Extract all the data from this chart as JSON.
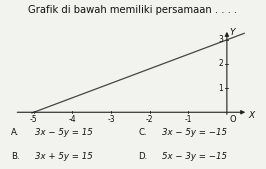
{
  "title": "Grafik di bawah memiliki persamaan . . . .",
  "x_intercept": -5,
  "y_intercept": 3,
  "x_min": -5.6,
  "x_max": 0.6,
  "y_min": -0.25,
  "y_max": 3.6,
  "x_ticks": [
    -5,
    -4,
    -3,
    -2,
    -1
  ],
  "y_ticks": [
    1,
    2,
    3
  ],
  "line_color": "#444444",
  "axis_color": "#222222",
  "bg_color": "#f2f2ee",
  "text_color": "#111111",
  "font_size_title": 7.2,
  "font_size_tick": 5.5,
  "font_size_axlabel": 6.5,
  "font_size_origin": 6.0,
  "font_size_choices": 6.2,
  "choices_col1": [
    [
      "A.",
      "3x − 5y = 15"
    ],
    [
      "B.",
      "3x + 5y = 15"
    ]
  ],
  "choices_col2": [
    [
      "C.",
      "3x − 5y = −15"
    ],
    [
      "D.",
      "5x − 3y = −15"
    ]
  ]
}
